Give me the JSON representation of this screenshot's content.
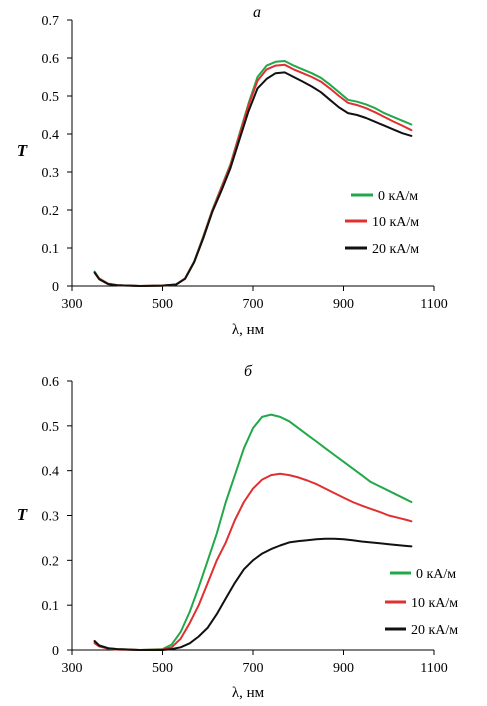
{
  "chart_data": [
    {
      "type": "line",
      "panel_label": "a",
      "xlabel": "λ, нм",
      "ylabel": "T",
      "xlim": [
        300,
        1100
      ],
      "ylim": [
        0,
        0.7
      ],
      "xticks": [
        "300",
        "500",
        "700",
        "900",
        "1100"
      ],
      "yticks": [
        "0",
        "0.1",
        "0.2",
        "0.3",
        "0.4",
        "0.5",
        "0.6",
        "0.7"
      ],
      "legend_position": "right",
      "series": [
        {
          "name": "0 кА/м",
          "color": "#22a84a",
          "x": [
            350,
            360,
            380,
            400,
            450,
            500,
            530,
            550,
            570,
            590,
            610,
            630,
            650,
            670,
            690,
            710,
            730,
            750,
            770,
            790,
            810,
            830,
            850,
            870,
            890,
            910,
            930,
            950,
            970,
            990,
            1010,
            1030,
            1050
          ],
          "y": [
            0.038,
            0.02,
            0.006,
            0.002,
            0.0,
            0.001,
            0.004,
            0.02,
            0.065,
            0.13,
            0.2,
            0.26,
            0.32,
            0.4,
            0.48,
            0.55,
            0.58,
            0.59,
            0.592,
            0.58,
            0.57,
            0.56,
            0.548,
            0.53,
            0.51,
            0.49,
            0.485,
            0.478,
            0.468,
            0.455,
            0.445,
            0.435,
            0.425
          ]
        },
        {
          "name": "10 кА/м",
          "color": "#e03030",
          "x": [
            350,
            360,
            380,
            400,
            450,
            500,
            530,
            550,
            570,
            590,
            610,
            630,
            650,
            670,
            690,
            710,
            730,
            750,
            770,
            790,
            810,
            830,
            850,
            870,
            890,
            910,
            930,
            950,
            970,
            990,
            1010,
            1030,
            1050
          ],
          "y": [
            0.036,
            0.019,
            0.006,
            0.002,
            0.0,
            0.001,
            0.004,
            0.02,
            0.064,
            0.128,
            0.198,
            0.257,
            0.317,
            0.396,
            0.475,
            0.54,
            0.57,
            0.58,
            0.582,
            0.57,
            0.56,
            0.55,
            0.538,
            0.52,
            0.5,
            0.482,
            0.476,
            0.468,
            0.457,
            0.445,
            0.433,
            0.422,
            0.41
          ]
        },
        {
          "name": "20 кА/м",
          "color": "#111111",
          "x": [
            350,
            360,
            380,
            400,
            450,
            500,
            530,
            550,
            570,
            590,
            610,
            630,
            650,
            670,
            690,
            710,
            730,
            750,
            770,
            790,
            810,
            830,
            850,
            870,
            890,
            910,
            930,
            950,
            970,
            990,
            1010,
            1030,
            1050
          ],
          "y": [
            0.035,
            0.018,
            0.005,
            0.002,
            0.0,
            0.001,
            0.004,
            0.019,
            0.063,
            0.125,
            0.195,
            0.25,
            0.31,
            0.385,
            0.46,
            0.52,
            0.545,
            0.56,
            0.562,
            0.55,
            0.538,
            0.525,
            0.51,
            0.49,
            0.47,
            0.455,
            0.45,
            0.442,
            0.432,
            0.422,
            0.412,
            0.402,
            0.395
          ]
        }
      ]
    },
    {
      "type": "line",
      "panel_label": "б",
      "xlabel": "λ, нм",
      "ylabel": "T",
      "xlim": [
        300,
        1100
      ],
      "ylim": [
        0,
        0.6
      ],
      "xticks": [
        "300",
        "500",
        "700",
        "900",
        "1100"
      ],
      "yticks": [
        "0",
        "0.1",
        "0.2",
        "0.3",
        "0.4",
        "0.5",
        "0.6"
      ],
      "legend_position": "bottom-right",
      "series": [
        {
          "name": "0 кА/м",
          "color": "#22a84a",
          "x": [
            350,
            360,
            380,
            400,
            450,
            500,
            520,
            540,
            560,
            580,
            600,
            620,
            640,
            660,
            680,
            700,
            720,
            740,
            760,
            780,
            800,
            820,
            840,
            860,
            880,
            900,
            920,
            940,
            960,
            980,
            1000,
            1020,
            1040,
            1050
          ],
          "y": [
            0.018,
            0.01,
            0.004,
            0.002,
            0.0,
            0.002,
            0.012,
            0.04,
            0.085,
            0.14,
            0.2,
            0.26,
            0.33,
            0.39,
            0.45,
            0.495,
            0.52,
            0.525,
            0.52,
            0.51,
            0.495,
            0.48,
            0.465,
            0.45,
            0.435,
            0.42,
            0.405,
            0.39,
            0.375,
            0.365,
            0.355,
            0.345,
            0.335,
            0.33
          ]
        },
        {
          "name": "10 кА/м",
          "color": "#e03030",
          "x": [
            350,
            360,
            380,
            400,
            450,
            500,
            520,
            540,
            560,
            580,
            600,
            620,
            640,
            660,
            680,
            700,
            720,
            740,
            760,
            780,
            800,
            820,
            840,
            860,
            880,
            900,
            920,
            940,
            960,
            980,
            1000,
            1020,
            1040,
            1050
          ],
          "y": [
            0.015,
            0.008,
            0.003,
            0.001,
            0.0,
            0.001,
            0.006,
            0.025,
            0.06,
            0.1,
            0.15,
            0.2,
            0.24,
            0.29,
            0.33,
            0.36,
            0.38,
            0.39,
            0.393,
            0.39,
            0.385,
            0.378,
            0.37,
            0.36,
            0.35,
            0.34,
            0.33,
            0.322,
            0.315,
            0.308,
            0.3,
            0.295,
            0.29,
            0.287
          ]
        },
        {
          "name": "20 кА/м",
          "color": "#111111",
          "x": [
            350,
            360,
            380,
            400,
            450,
            500,
            520,
            540,
            560,
            580,
            600,
            620,
            640,
            660,
            680,
            700,
            720,
            740,
            760,
            780,
            800,
            820,
            840,
            860,
            880,
            900,
            920,
            940,
            960,
            980,
            1000,
            1020,
            1040,
            1050
          ],
          "y": [
            0.02,
            0.01,
            0.004,
            0.002,
            0.0,
            0.0,
            0.002,
            0.006,
            0.015,
            0.03,
            0.05,
            0.08,
            0.115,
            0.15,
            0.18,
            0.2,
            0.215,
            0.225,
            0.233,
            0.24,
            0.243,
            0.245,
            0.247,
            0.248,
            0.248,
            0.247,
            0.245,
            0.242,
            0.24,
            0.238,
            0.236,
            0.234,
            0.232,
            0.231
          ]
        }
      ]
    }
  ]
}
